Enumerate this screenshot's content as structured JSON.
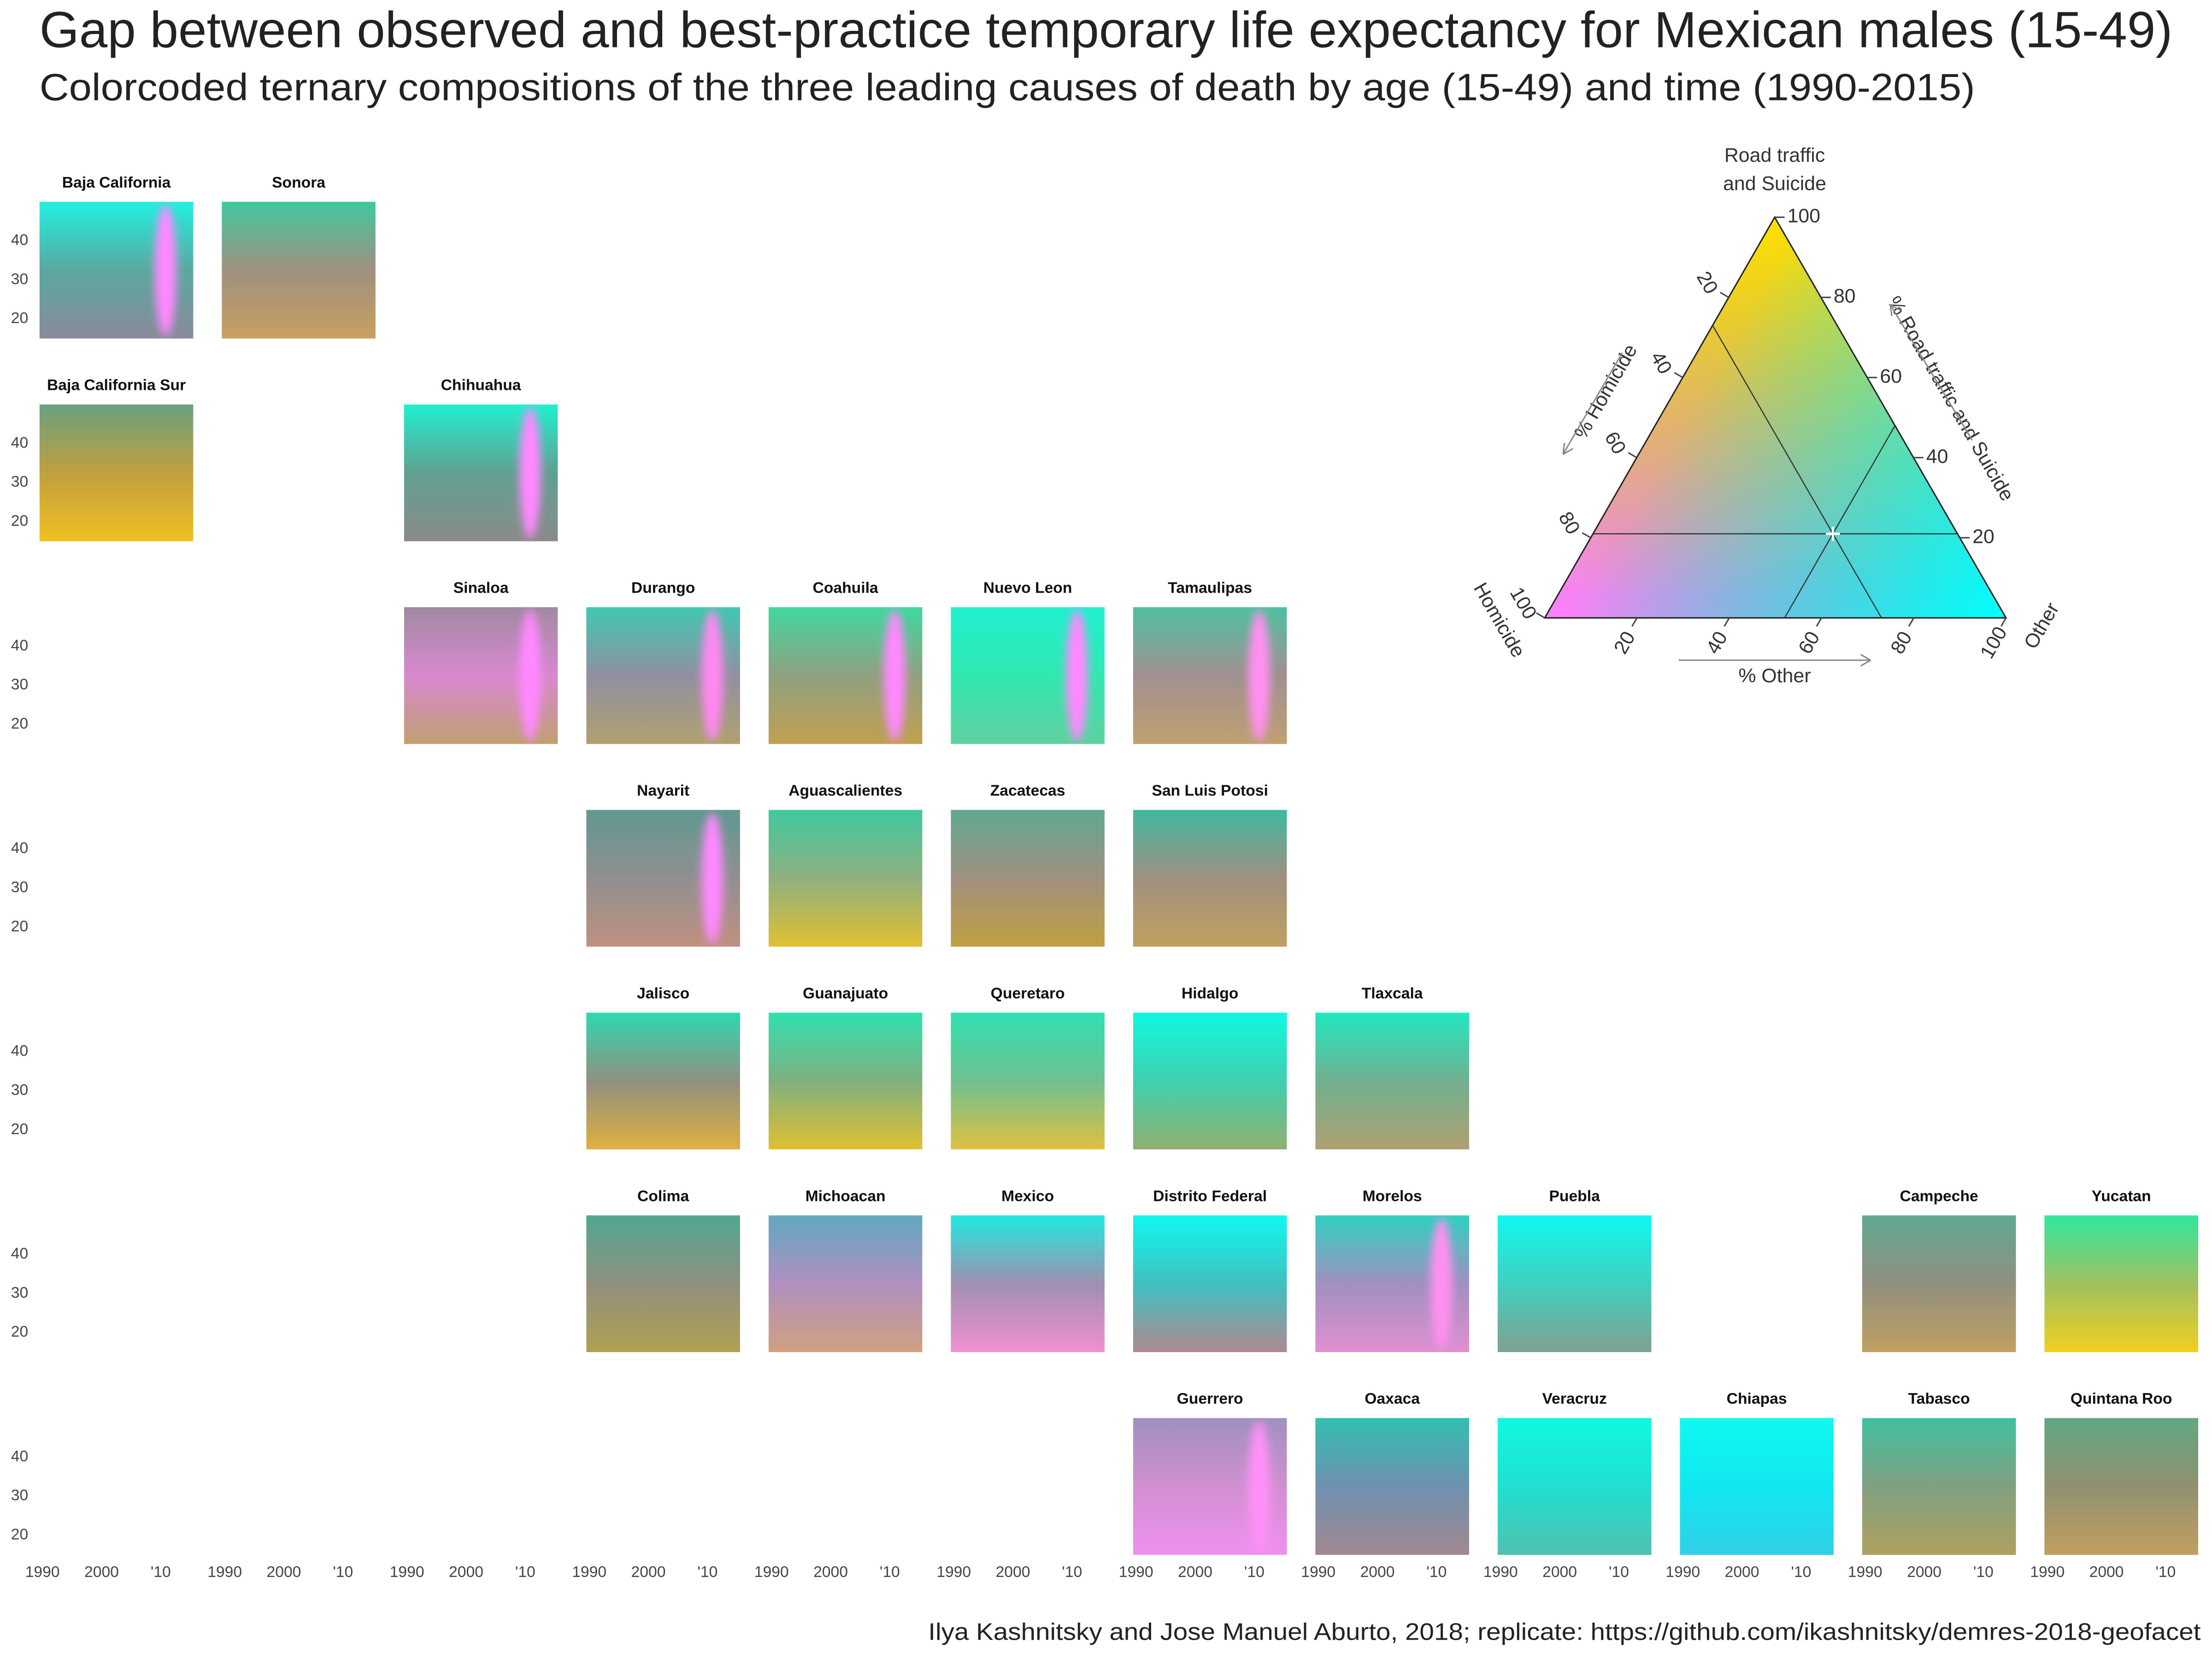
{
  "chart_data": {
    "type": "geofacet-ternary-tiles",
    "title": "Gap between observed and best-practice temporary life expectancy for Mexican males (15-49)",
    "subtitle": "Colorcoded ternary compositions of the three leading causes of death by age (15-49) and time (1990-2015)",
    "caption": "Ilya Kashnitsky and Jose Manuel Aburto, 2018; replicate: https://github.com/ikashnitsky/demres-2018-geofacet",
    "xlim": [
      1989.5,
      2015.5
    ],
    "xticks": [
      1990,
      2000,
      {
        "value": 2010,
        "label": "'10"
      }
    ],
    "ylim": [
      15,
      50
    ],
    "yticks": [
      20,
      30,
      40
    ],
    "facets": [
      {
        "name": "Baja California",
        "colors": [
          "#22f0e0",
          "#5aa8a0",
          "#8a8a9a"
        ],
        "band_color": "#ff88ff"
      },
      {
        "name": "Sonora",
        "colors": [
          "#40c8a0",
          "#a09080",
          "#c8a060"
        ]
      },
      {
        "name": "Baja California Sur",
        "colors": [
          "#6aa080",
          "#c0a040",
          "#f0c020"
        ]
      },
      {
        "name": "Chihuahua",
        "colors": [
          "#20f0d0",
          "#60a090",
          "#8a8a8a"
        ],
        "band_color": "#ff88ff"
      },
      {
        "name": "Sinaloa",
        "colors": [
          "#a08aa0",
          "#d888d0",
          "#c0a070"
        ],
        "band_color": "#ff88ff"
      },
      {
        "name": "Durango",
        "colors": [
          "#40c8b0",
          "#9090a0",
          "#b0a070"
        ],
        "band_color": "#ff88f0"
      },
      {
        "name": "Coahuila",
        "colors": [
          "#40d8a0",
          "#90a080",
          "#c0a050"
        ],
        "band_color": "#ff88ff"
      },
      {
        "name": "Nuevo Leon",
        "colors": [
          "#20f0d0",
          "#30e8b0",
          "#60d0a0"
        ],
        "band_color": "#ff88ff"
      },
      {
        "name": "Tamaulipas",
        "colors": [
          "#50c0a0",
          "#a09090",
          "#c0a070"
        ],
        "band_color": "#ff90f0"
      },
      {
        "name": "Nayarit",
        "colors": [
          "#609890",
          "#909090",
          "#c09080"
        ],
        "band_color": "#ff88ff"
      },
      {
        "name": "Aguascalientes",
        "colors": [
          "#40c8a0",
          "#90b080",
          "#e0c030"
        ]
      },
      {
        "name": "Zacatecas",
        "colors": [
          "#60a890",
          "#a09080",
          "#c0a040"
        ]
      },
      {
        "name": "San Luis Potosi",
        "colors": [
          "#40b8a0",
          "#a09080",
          "#c0a060"
        ]
      },
      {
        "name": "Jalisco",
        "colors": [
          "#30d8b0",
          "#909080",
          "#e0b040"
        ]
      },
      {
        "name": "Guanajuato",
        "colors": [
          "#30e0b0",
          "#80b080",
          "#e0c030"
        ]
      },
      {
        "name": "Queretaro",
        "colors": [
          "#30e0b0",
          "#70c090",
          "#e0c040"
        ]
      },
      {
        "name": "Hidalgo",
        "colors": [
          "#10f8e0",
          "#40d0b0",
          "#90b070"
        ]
      },
      {
        "name": "Tlaxcala",
        "colors": [
          "#20e8c0",
          "#70b090",
          "#b0a070"
        ]
      },
      {
        "name": "Colima",
        "colors": [
          "#50a890",
          "#909080",
          "#b0a050"
        ]
      },
      {
        "name": "Michoacan",
        "colors": [
          "#60a8c0",
          "#b090c0",
          "#d0a080"
        ]
      },
      {
        "name": "Mexico",
        "colors": [
          "#20e8e0",
          "#a090b0",
          "#f090d0"
        ]
      },
      {
        "name": "Distrito Federal",
        "colors": [
          "#10f8f0",
          "#40c0c0",
          "#b08890"
        ]
      },
      {
        "name": "Morelos",
        "colors": [
          "#30d0c0",
          "#a090c0",
          "#e090d0"
        ],
        "band_color": "#ff90f0"
      },
      {
        "name": "Puebla",
        "colors": [
          "#10f8f0",
          "#40d0c0",
          "#80a090"
        ]
      },
      {
        "name": "Campeche",
        "colors": [
          "#60a890",
          "#909080",
          "#c0a060"
        ]
      },
      {
        "name": "Yucatan",
        "colors": [
          "#30e8a0",
          "#a0c060",
          "#f0d020"
        ]
      },
      {
        "name": "Guerrero",
        "colors": [
          "#a090c0",
          "#d090d0",
          "#f090f0"
        ],
        "band_color": "#ff90f8"
      },
      {
        "name": "Oaxaca",
        "colors": [
          "#30c0b0",
          "#7090b0",
          "#a08890"
        ]
      },
      {
        "name": "Veracruz",
        "colors": [
          "#10f8e0",
          "#20e0d0",
          "#50c0b0"
        ]
      },
      {
        "name": "Chiapas",
        "colors": [
          "#10f8f0",
          "#10e8f0",
          "#30d0e8"
        ]
      },
      {
        "name": "Tabasco",
        "colors": [
          "#40c0a0",
          "#80a080",
          "#b0a060"
        ]
      },
      {
        "name": "Quintana Roo",
        "colors": [
          "#60a880",
          "#909070",
          "#c0a060"
        ]
      }
    ],
    "ternary_legend": {
      "top_label": [
        "Road traffic",
        "and Suicide"
      ],
      "left_label": "Homicide",
      "right_label": "Other",
      "left_axis_title": "% Homicide",
      "right_axis_title": "% Road traffic and Suicide",
      "bottom_axis_title": "% Other",
      "homicide_ticks": [
        20,
        40,
        60,
        80,
        100
      ],
      "road_ticks": [
        20,
        40,
        60,
        80,
        100
      ],
      "other_ticks": [
        20,
        40,
        60,
        80,
        100
      ],
      "colors": {
        "homicide": "#ff80ff",
        "road": "#ffe000",
        "other": "#00ffff"
      },
      "center": {
        "homicide": 27,
        "road": 21,
        "other": 52
      }
    }
  }
}
